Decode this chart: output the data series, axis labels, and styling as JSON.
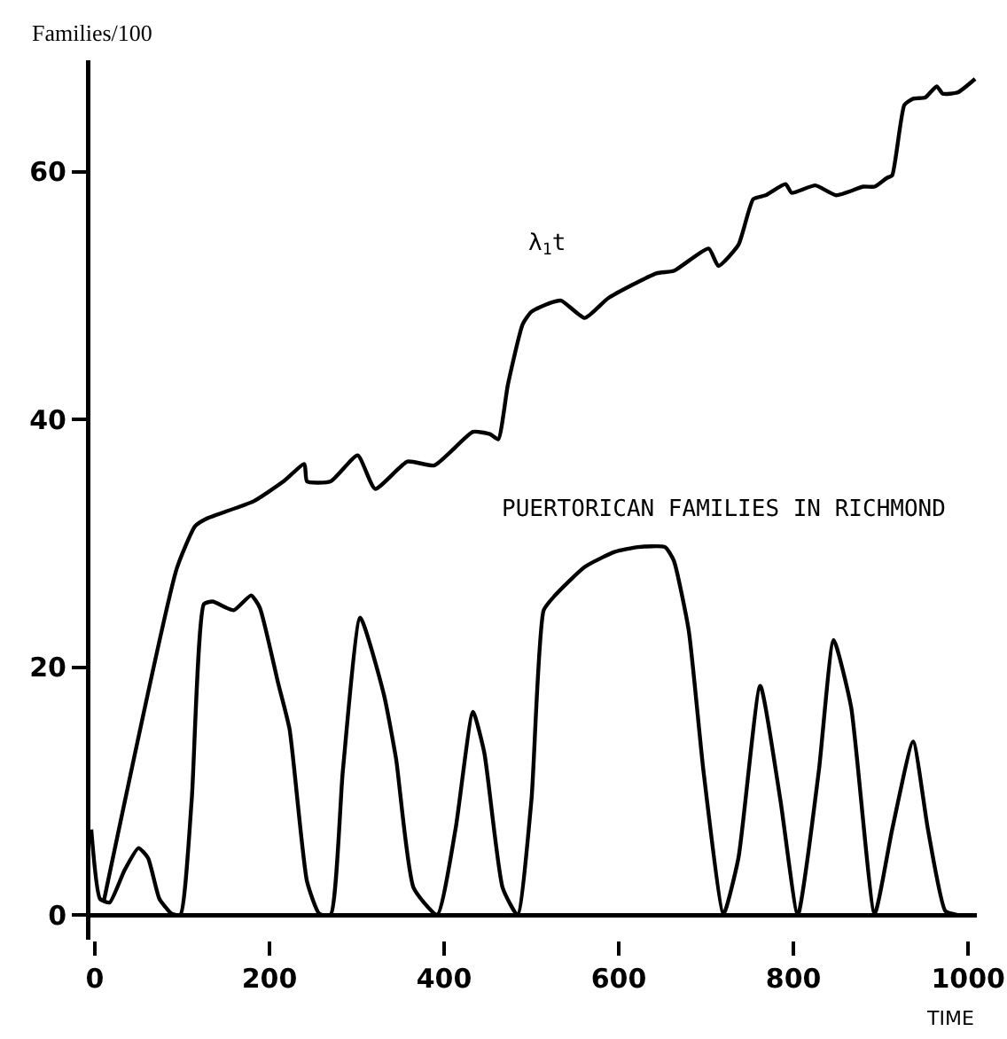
{
  "chart_data": {
    "type": "line",
    "xlabel": "TIME",
    "ylabel": "Families/100",
    "xlim": [
      -5,
      1010
    ],
    "ylim": [
      -2,
      69
    ],
    "xticks": [
      0,
      200,
      400,
      600,
      800,
      1000
    ],
    "yticks": [
      0,
      20,
      40,
      60
    ],
    "marker": "none",
    "line_style": "solid",
    "series": [
      {
        "color": "#000000",
        "x": [
          10,
          94,
          115,
          128,
          182,
          216,
          240,
          243,
          270,
          301,
          321,
          358,
          389,
          433,
          453,
          462,
          473,
          490,
          500,
          521,
          534,
          561,
          588,
          643,
          663,
          703,
          714,
          737,
          754,
          768,
          791,
          798,
          825,
          849,
          880,
          893,
          907,
          913,
          927,
          937,
          951,
          964,
          971,
          988,
          1008
        ],
        "values": [
          1,
          28,
          31.4,
          32,
          33.4,
          35,
          36.4,
          35,
          35,
          37.1,
          34.4,
          36.6,
          36.3,
          39,
          38.8,
          38.4,
          42.8,
          47.7,
          48.7,
          49.4,
          49.6,
          48.2,
          49.8,
          51.8,
          52,
          53.8,
          52.4,
          54.1,
          57.8,
          58.1,
          59,
          58.3,
          58.9,
          58.1,
          58.8,
          58.8,
          59.5,
          59.7,
          65.4,
          65.9,
          66,
          66.9,
          66.3,
          66.4,
          67.5
        ]
      },
      {
        "color": "#000000",
        "x": [
          -4,
          6,
          17,
          34,
          50,
          61,
          74,
          88,
          98,
          111,
          125,
          135,
          159,
          179,
          189,
          210,
          223,
          243,
          257,
          270,
          284,
          304,
          331,
          345,
          365,
          392,
          413,
          433,
          446,
          467,
          484,
          500,
          514,
          527,
          561,
          595,
          622,
          653,
          663,
          680,
          697,
          720,
          737,
          762,
          785,
          805,
          829,
          846,
          866,
          893,
          913,
          937,
          954,
          974,
          988
        ],
        "values": [
          6.9,
          1.3,
          1,
          3.6,
          5.4,
          4.6,
          1.3,
          0.1,
          0,
          9.3,
          25.1,
          25.3,
          24.6,
          25.8,
          24.8,
          18.7,
          15,
          2.7,
          0.1,
          0,
          11.6,
          24,
          17.8,
          12.6,
          2.2,
          0,
          6.9,
          16.4,
          13.1,
          2.2,
          0,
          9.3,
          24.6,
          25.8,
          28.1,
          29.3,
          29.7,
          29.7,
          28.6,
          23,
          11.6,
          0.1,
          4.6,
          18.5,
          9.3,
          0,
          11.6,
          22.2,
          16.8,
          0.1,
          6.9,
          14,
          6.9,
          0.3,
          0
        ]
      }
    ],
    "annotations": [
      "λ$_{1}$t",
      "PUERTORICAN FAMILIES IN RICHMOND"
    ]
  }
}
